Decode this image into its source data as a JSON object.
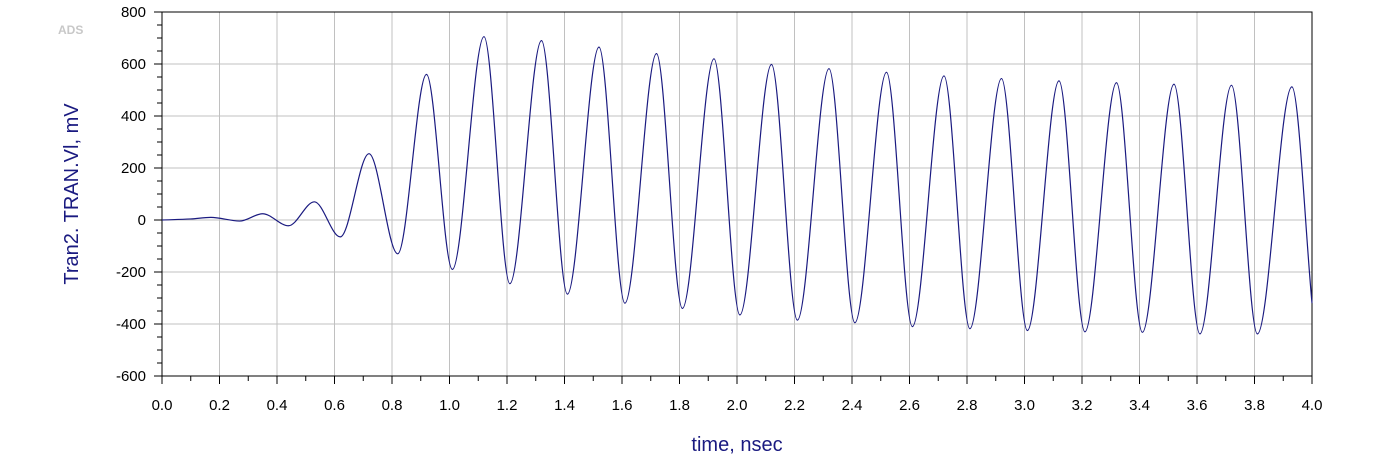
{
  "logo_text": "ADS",
  "chart_data": {
    "type": "line",
    "xlabel": "time, nsec",
    "ylabel": "Tran2. TRAN.Vl, mV",
    "xlim": [
      0.0,
      4.0
    ],
    "ylim": [
      -600,
      800
    ],
    "x_ticks": [
      0.0,
      0.2,
      0.4,
      0.6,
      0.8,
      1.0,
      1.2,
      1.4,
      1.6,
      1.8,
      2.0,
      2.2,
      2.4,
      2.6,
      2.8,
      3.0,
      3.2,
      3.4,
      3.6,
      3.8,
      4.0
    ],
    "x_tick_labels": [
      "0.0",
      "0.2",
      "0.4",
      "0.6",
      "0.8",
      "1.0",
      "1.2",
      "1.4",
      "1.6",
      "1.8",
      "2.0",
      "2.2",
      "2.4",
      "2.6",
      "2.8",
      "3.0",
      "3.2",
      "3.4",
      "3.6",
      "3.8",
      "4.0"
    ],
    "y_ticks": [
      -600,
      -400,
      -200,
      0,
      200,
      400,
      600,
      800
    ],
    "y_tick_labels": [
      "-600",
      "-400",
      "-200",
      "0",
      "200",
      "400",
      "600",
      "800"
    ],
    "grid": true,
    "line_color": "#1a1a80",
    "series": [
      {
        "x": [
          0.0,
          0.1,
          0.17,
          0.27,
          0.35,
          0.44,
          0.53,
          0.62,
          0.72,
          0.82,
          0.92,
          1.01,
          1.12,
          1.21,
          1.32,
          1.41,
          1.52,
          1.61,
          1.72,
          1.81,
          1.92,
          2.01,
          2.12,
          2.21,
          2.32,
          2.41,
          2.52,
          2.61,
          2.72,
          2.81,
          2.92,
          3.01,
          3.12,
          3.21,
          3.32,
          3.41,
          3.52,
          3.61,
          3.72,
          3.81,
          3.93,
          4.0
        ],
        "values": [
          0,
          4,
          10,
          -4,
          24,
          -22,
          70,
          -65,
          255,
          -130,
          560,
          -190,
          705,
          -245,
          690,
          -285,
          665,
          -320,
          640,
          -340,
          620,
          -365,
          598,
          -385,
          582,
          -395,
          568,
          -410,
          554,
          -418,
          544,
          -425,
          535,
          -430,
          528,
          -432,
          522,
          -438,
          518,
          -438,
          512,
          -320
        ]
      }
    ]
  }
}
